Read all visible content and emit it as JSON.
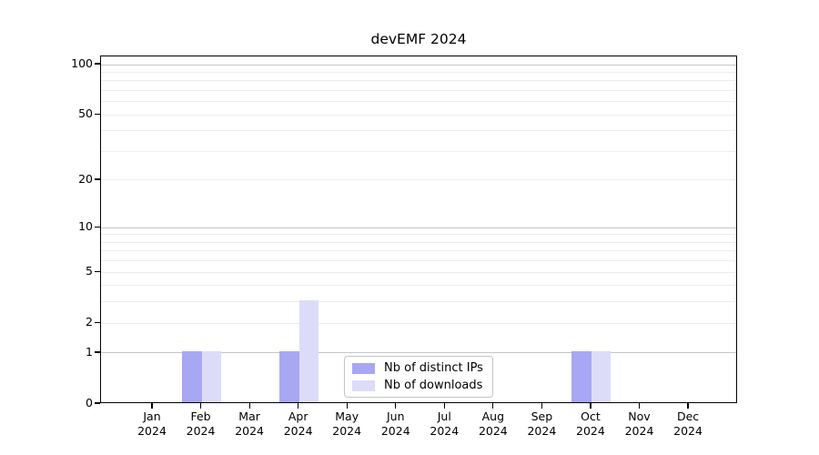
{
  "chart_data": {
    "type": "bar",
    "title": "devEMF 2024",
    "categories": [
      "Jan 2024",
      "Feb 2024",
      "Mar 2024",
      "Apr 2024",
      "May 2024",
      "Jun 2024",
      "Jul 2024",
      "Aug 2024",
      "Sep 2024",
      "Oct 2024",
      "Nov 2024",
      "Dec 2024"
    ],
    "series": [
      {
        "name": "Nb of distinct IPs",
        "color": "#a7a7f3",
        "values": [
          0,
          1,
          0,
          1,
          0,
          0,
          0,
          0,
          0,
          1,
          0,
          0
        ]
      },
      {
        "name": "Nb of downloads",
        "color": "#dcdcf9",
        "values": [
          0,
          1,
          0,
          3,
          0,
          0,
          0,
          0,
          0,
          1,
          0,
          0
        ]
      }
    ],
    "xlabel": "",
    "ylabel": "",
    "yscale": "log1p",
    "ylim": [
      0,
      115
    ],
    "ytick_labels": [
      0,
      1,
      2,
      5,
      10,
      20,
      50,
      100
    ],
    "major_gridlines": [
      1,
      10,
      100
    ],
    "minor_gridlines": [
      2,
      3,
      4,
      5,
      6,
      7,
      8,
      9,
      20,
      30,
      40,
      50,
      60,
      70,
      80,
      90
    ],
    "grid": true,
    "legend_position": "bottom-center"
  },
  "colors": {
    "axis": "#000000",
    "major_grid": "#c6c6c6",
    "minor_grid": "#ededed",
    "legend_border": "#c4c4c4",
    "legend_background": "#ffffff",
    "text": "#000000"
  }
}
